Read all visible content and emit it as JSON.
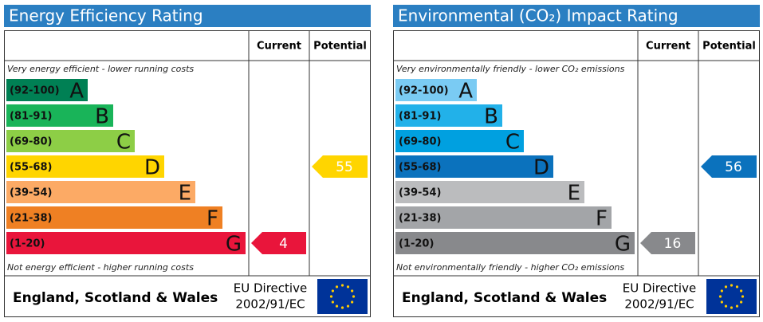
{
  "panels": [
    {
      "title": "Energy Efficiency Rating",
      "headers": [
        "Current",
        "Potential"
      ],
      "top_note": "Very energy efficient - lower running costs",
      "bottom_note": "Not energy efficient - higher running costs",
      "bands": [
        {
          "range": "(92-100)",
          "letter": "A",
          "color": "#008054"
        },
        {
          "range": "(81-91)",
          "letter": "B",
          "color": "#19b459"
        },
        {
          "range": "(69-80)",
          "letter": "C",
          "color": "#8dce46"
        },
        {
          "range": "(55-68)",
          "letter": "D",
          "color": "#ffd500"
        },
        {
          "range": "(39-54)",
          "letter": "E",
          "color": "#fcaa65"
        },
        {
          "range": "(21-38)",
          "letter": "F",
          "color": "#ef8023"
        },
        {
          "range": "(1-20)",
          "letter": "G",
          "color": "#e9153b"
        }
      ],
      "current": 4,
      "potential": 55,
      "region": "England, Scotland & Wales",
      "directive": [
        "EU Directive",
        "2002/91/EC"
      ]
    },
    {
      "title": "Environmental (CO₂) Impact Rating",
      "headers": [
        "Current",
        "Potential"
      ],
      "top_note": "Very environmentally friendly - lower CO₂ emissions",
      "bottom_note": "Not environmentally friendly - higher CO₂ emissions",
      "bands": [
        {
          "range": "(92-100)",
          "letter": "A",
          "color": "#7acbf3"
        },
        {
          "range": "(81-91)",
          "letter": "B",
          "color": "#22b1e9"
        },
        {
          "range": "(69-80)",
          "letter": "C",
          "color": "#00a0e0"
        },
        {
          "range": "(55-68)",
          "letter": "D",
          "color": "#0b72bd"
        },
        {
          "range": "(39-54)",
          "letter": "E",
          "color": "#bbbcbe"
        },
        {
          "range": "(21-38)",
          "letter": "F",
          "color": "#a3a5a8"
        },
        {
          "range": "(1-20)",
          "letter": "G",
          "color": "#88898c"
        }
      ],
      "current": 16,
      "potential": 56,
      "region": "England, Scotland & Wales",
      "directive": [
        "EU Directive",
        "2002/91/EC"
      ]
    }
  ]
}
